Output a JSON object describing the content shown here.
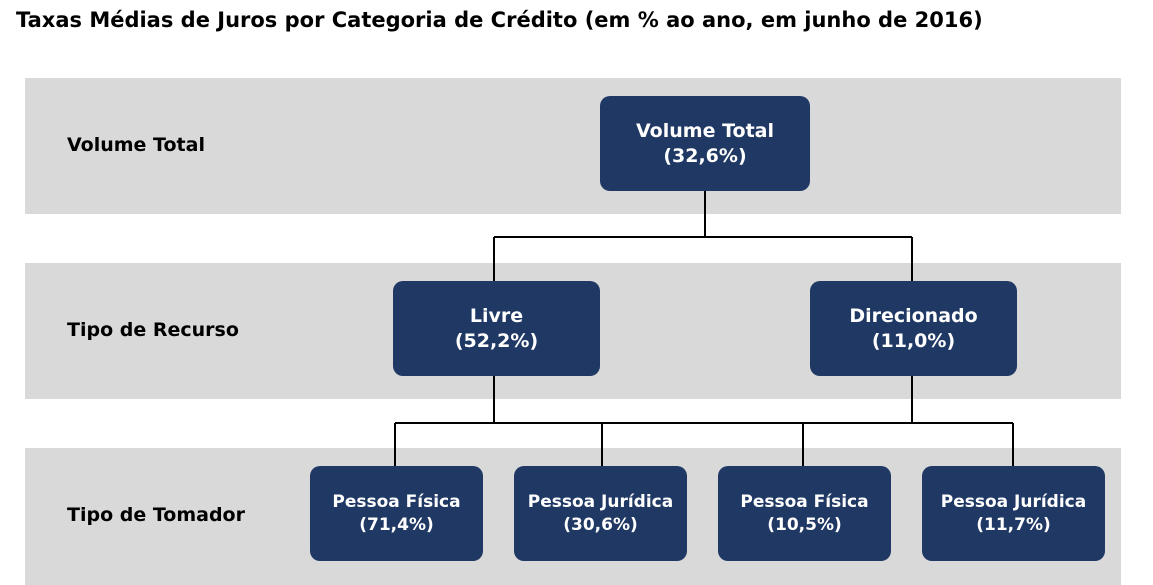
{
  "title": "Taxas Médias de Juros por Categoria de Crédito (em % ao ano, em junho de 2016)",
  "rows": [
    "Volume Total",
    "Tipo de Recurso",
    "Tipo de Tomador"
  ],
  "nodes": [
    {
      "label": "Volume Total",
      "value": "(32,6%)"
    },
    {
      "label": "Livre",
      "value": "(52,2%)"
    },
    {
      "label": "Direcionado",
      "value": "(11,0%)"
    },
    {
      "label": "Pessoa Física",
      "value": "(71,4%)"
    },
    {
      "label": "Pessoa Jurídica",
      "value": "(30,6%)"
    },
    {
      "label": "Pessoa Física",
      "value": "(10,5%)"
    },
    {
      "label": "Pessoa Jurídica",
      "value": "(11,7%)"
    }
  ]
}
